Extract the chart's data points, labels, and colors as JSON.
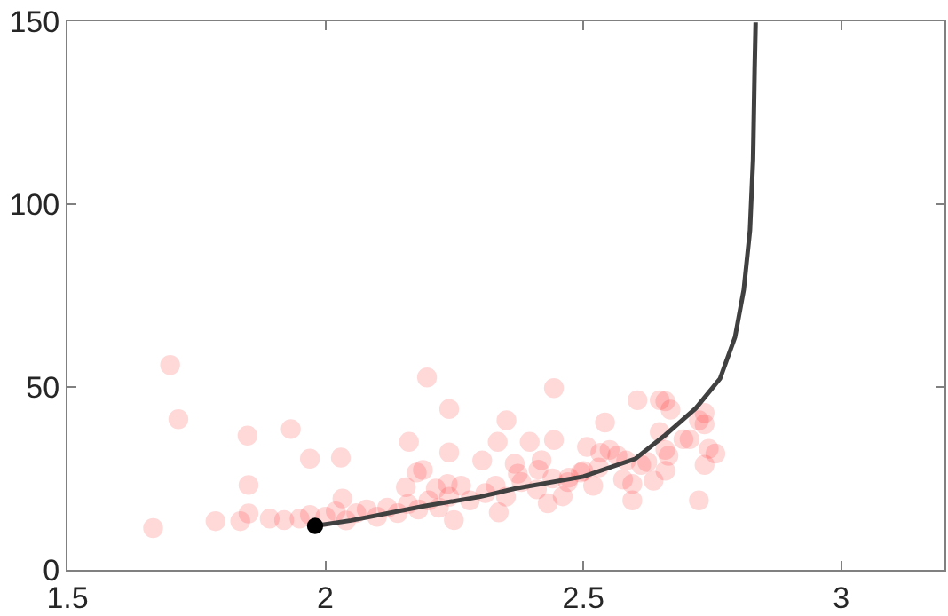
{
  "chart_data": {
    "type": "scatter",
    "xlim": [
      1.5,
      3.2
    ],
    "ylim": [
      0,
      150
    ],
    "xticks": [
      1.5,
      2,
      2.5,
      3
    ],
    "yticks": [
      0,
      50,
      100,
      150
    ],
    "series": [
      {
        "color": "#ff0000",
        "marker": "circle",
        "x": [
          1.699,
          1.715,
          1.666,
          1.787,
          1.835,
          1.849,
          1.851,
          1.851,
          1.892,
          1.92,
          1.933,
          1.97,
          2.03,
          2.033,
          2.162,
          2.197,
          2.177,
          2.189,
          2.24,
          2.24,
          2.156,
          2.214,
          2.237,
          2.249,
          2.263,
          2.304,
          2.334,
          2.351,
          2.336,
          2.367,
          2.373,
          2.396,
          2.419,
          2.413,
          2.443,
          2.443,
          2.431,
          2.46,
          2.472,
          2.495,
          2.507,
          2.519,
          2.542,
          2.533,
          2.551,
          2.566,
          2.577,
          2.583,
          2.595,
          2.595,
          2.605,
          2.636,
          2.648,
          2.659,
          2.669,
          2.648,
          2.659,
          2.665,
          2.659,
          2.694,
          2.706,
          2.724,
          2.735,
          2.735,
          2.724,
          2.735,
          2.743,
          2.756,
          2.612,
          2.624,
          1.95,
          1.97,
          2.0,
          2.02,
          2.04,
          2.06,
          2.08,
          2.1,
          2.12,
          2.14,
          2.16,
          2.18,
          2.2,
          2.22,
          2.24,
          2.28,
          2.31,
          2.33,
          2.35,
          2.38,
          2.41,
          2.44,
          2.47,
          2.5,
          2.53
        ],
        "values": [
          56,
          41.2,
          11.4,
          13.3,
          13.3,
          36.7,
          23.2,
          15.4,
          14,
          13.6,
          38.5,
          30.4,
          30.7,
          19.5,
          35,
          52.6,
          26.6,
          27.3,
          44,
          32.1,
          22.6,
          22.2,
          23.5,
          13.6,
          23,
          29.9,
          35,
          40.9,
          15.7,
          29,
          26.3,
          35,
          30,
          27.4,
          49.7,
          35.5,
          18.2,
          20.1,
          25.2,
          26.6,
          33.6,
          23,
          40.3,
          32,
          32.8,
          31.2,
          24.7,
          29.9,
          19,
          23.5,
          46.4,
          24.4,
          46.4,
          46.1,
          43.8,
          37.7,
          32.8,
          31.2,
          27.1,
          35.7,
          35.7,
          40.9,
          42.9,
          39.8,
          19,
          28.7,
          33.1,
          31.8,
          28.7,
          29.5,
          14,
          15,
          14.5,
          16,
          13.5,
          15.5,
          16.5,
          14.5,
          17,
          15.5,
          18,
          16.5,
          19,
          17,
          20,
          19,
          21,
          23,
          20,
          24,
          22,
          25,
          24,
          27,
          28
        ]
      },
      {
        "type": "line",
        "color": "#404040",
        "marker": "none",
        "line_style": "solid",
        "x": [
          1.98,
          2.05,
          2.191,
          2.3,
          2.367,
          2.5,
          2.601,
          2.659,
          2.718,
          2.765,
          2.794,
          2.811,
          2.823,
          2.829,
          2.832,
          2.834
        ],
        "values": [
          12,
          13.5,
          17.4,
          20,
          22.2,
          25.5,
          30.4,
          36.9,
          44.2,
          52.3,
          63.6,
          76.6,
          92.9,
          112.3,
          136.7,
          149.7
        ]
      },
      {
        "color": "#000000",
        "marker": "circle",
        "x": [
          1.98
        ],
        "values": [
          12
        ]
      }
    ]
  }
}
